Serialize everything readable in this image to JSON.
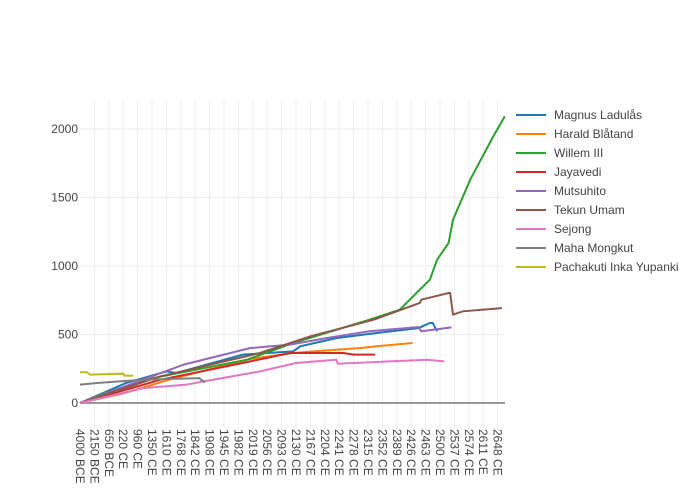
{
  "chart_data": {
    "type": "line",
    "title": "",
    "xlabel": "",
    "ylabel": "",
    "x_categories": [
      "4000 BCE",
      "2150 BCE",
      "650 BCE",
      "220 CE",
      "960 CE",
      "1350 CE",
      "1610 CE",
      "1768 CE",
      "1842 CE",
      "1908 CE",
      "1945 CE",
      "1982 CE",
      "2019 CE",
      "2056 CE",
      "2093 CE",
      "2130 CE",
      "2167 CE",
      "2204 CE",
      "2241 CE",
      "2278 CE",
      "2315 CE",
      "2352 CE",
      "2389 CE",
      "2426 CE",
      "2463 CE",
      "2500 CE",
      "2537 CE",
      "2574 CE",
      "2611 CE",
      "2648 CE"
    ],
    "x_note": "x values are category positions (0 = 4000 BCE ... 29 = 2648 CE)",
    "yticks": [
      0,
      500,
      1000,
      1500,
      2000
    ],
    "ylim": [
      -80,
      2230
    ],
    "xlim": [
      0,
      29.5
    ],
    "grid": true,
    "legend_position": "right",
    "series": [
      {
        "name": "Magnus Ladulås",
        "color": "#1f77b4",
        "x": [
          0,
          3.2,
          6.0,
          6.7,
          11.3,
          14.8,
          15.3,
          17.8,
          20.6,
          23.5,
          24.3,
          24.5,
          24.8
        ],
        "y": [
          0,
          146,
          231,
          219,
          353,
          377,
          414,
          474,
          511,
          547,
          584,
          584,
          523
        ]
      },
      {
        "name": "Harald Blåtand",
        "color": "#ff7f0e",
        "x": [
          0,
          3,
          6.2,
          11.8,
          14.8,
          16.2,
          19.4,
          20.6,
          23.1
        ],
        "y": [
          0,
          70,
          170,
          321,
          365,
          377,
          401,
          414,
          438
        ]
      },
      {
        "name": "Willem III",
        "color": "#2ca02c",
        "x": [
          0,
          1.4,
          5,
          11.6,
          14.8,
          20.1,
          22.2,
          23.6,
          24.3,
          24.8,
          25.6,
          25.9,
          27.1,
          28.7,
          29.5
        ],
        "y": [
          0,
          61,
          180,
          316,
          438,
          608,
          681,
          827,
          900,
          1046,
          1168,
          1338,
          1630,
          1946,
          2092
        ]
      },
      {
        "name": "Jayavedi",
        "color": "#d62728",
        "x": [
          0,
          5.6,
          11.3,
          14.6,
          18.3,
          19,
          20.5
        ],
        "y": [
          0,
          170,
          292,
          365,
          365,
          353,
          353
        ]
      },
      {
        "name": "Mutsuhito",
        "color": "#9467bd",
        "x": [
          0,
          7.2,
          9.5,
          11.8,
          14.6,
          17.1,
          20.1,
          23.5,
          23.7,
          25.8
        ],
        "y": [
          0,
          280,
          340,
          401,
          426,
          474,
          523,
          555,
          523,
          552
        ]
      },
      {
        "name": "Tekun Umam",
        "color": "#8c564b",
        "x": [
          0,
          5.6,
          12.5,
          16,
          20.4,
          23.6,
          23.7,
          25.6,
          25.7,
          25.9,
          26.6,
          29.3
        ],
        "y": [
          0,
          195,
          365,
          487,
          608,
          730,
          754,
          803,
          803,
          645,
          669,
          693
        ]
      },
      {
        "name": "Sejong",
        "color": "#e377c2",
        "x": [
          0,
          4.4,
          7.4,
          8.6,
          12.5,
          15.0,
          17.8,
          17.9,
          24.1,
          25.3
        ],
        "y": [
          0,
          109,
          134,
          158,
          231,
          292,
          316,
          287,
          316,
          304
        ]
      },
      {
        "name": "Maha Mongkut",
        "color": "#7f7f7f",
        "x": [
          0,
          1.2,
          4.4,
          8.3,
          8.4,
          8.7
        ],
        "y": [
          134,
          146,
          170,
          182,
          170,
          151
        ]
      },
      {
        "name": "Pachakuti Inka Yupanki",
        "color": "#bcbd22",
        "x": [
          0,
          0.5,
          0.7,
          3.0,
          3.1,
          3.7
        ],
        "y": [
          224,
          224,
          207,
          214,
          200,
          200
        ]
      }
    ]
  }
}
